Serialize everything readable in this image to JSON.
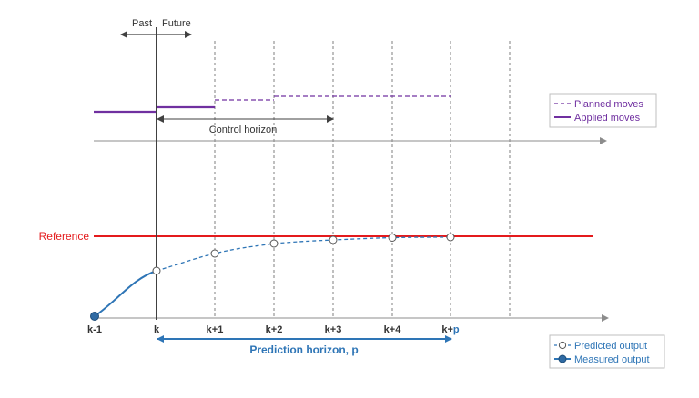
{
  "colors": {
    "axis": "#8c8c8c",
    "now_line": "#404040",
    "reference": "#e41a1c",
    "moves": "#7030a0",
    "output": "#2e75b6",
    "marker_fill_measured": "#2f6aa3",
    "horizon_text": "#2e75b6",
    "dashed_grid": "#7f7f7f"
  },
  "top": {
    "past_label": "Past",
    "future_label": "Future"
  },
  "control": {
    "horizon_label": "Control horizon"
  },
  "reference_label": "Reference",
  "axis_ticks": {
    "t0": "k-1",
    "t1": "k",
    "t2": "k+1",
    "t3": "k+2",
    "t4": "k+3",
    "t5": "k+4",
    "t6_prefix": "k+",
    "t6_suffix": "p"
  },
  "prediction": {
    "horizon_label": "Prediction horizon, p"
  },
  "legend_moves": {
    "planned": "Planned moves",
    "applied": "Applied moves"
  },
  "legend_output": {
    "predicted": "Predicted output",
    "measured": "Measured output"
  }
}
